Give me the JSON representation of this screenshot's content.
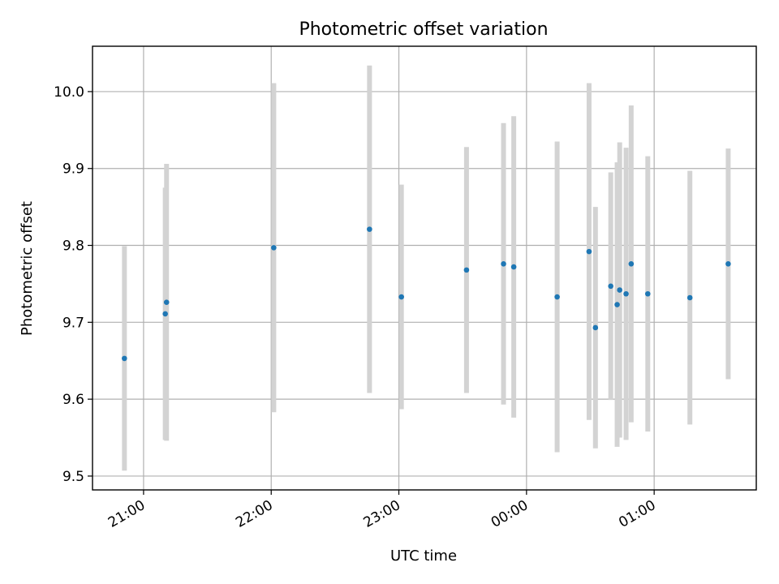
{
  "chart_data": {
    "type": "scatter",
    "title": "Photometric offset variation",
    "xlabel": "UTC time",
    "ylabel": "Photometric offset",
    "x_unit": "hours",
    "xlim": [
      20.6,
      25.8
    ],
    "ylim": [
      9.482,
      10.059
    ],
    "xticks": [
      {
        "value": 21,
        "label": "21:00"
      },
      {
        "value": 22,
        "label": "22:00"
      },
      {
        "value": 23,
        "label": "23:00"
      },
      {
        "value": 24,
        "label": "00:00"
      },
      {
        "value": 25,
        "label": "01:00"
      }
    ],
    "yticks": [
      {
        "value": 9.5,
        "label": "9.5"
      },
      {
        "value": 9.6,
        "label": "9.6"
      },
      {
        "value": 9.7,
        "label": "9.7"
      },
      {
        "value": 9.8,
        "label": "9.8"
      },
      {
        "value": 9.9,
        "label": "9.9"
      },
      {
        "value": 10.0,
        "label": "10.0"
      }
    ],
    "grid": true,
    "marker_color": "#1f77b4",
    "errorbar_color": "#d3d3d3",
    "points": [
      {
        "x": 20.85,
        "y": 9.653,
        "err": 0.146
      },
      {
        "x": 21.17,
        "y": 9.711,
        "err": 0.164
      },
      {
        "x": 21.18,
        "y": 9.726,
        "err": 0.18
      },
      {
        "x": 22.02,
        "y": 9.797,
        "err": 0.214
      },
      {
        "x": 22.77,
        "y": 9.821,
        "err": 0.213
      },
      {
        "x": 23.02,
        "y": 9.733,
        "err": 0.146
      },
      {
        "x": 23.53,
        "y": 9.768,
        "err": 0.16
      },
      {
        "x": 23.82,
        "y": 9.776,
        "err": 0.183
      },
      {
        "x": 23.9,
        "y": 9.772,
        "err": 0.196
      },
      {
        "x": 24.24,
        "y": 9.733,
        "err": 0.202
      },
      {
        "x": 24.49,
        "y": 9.792,
        "err": 0.219
      },
      {
        "x": 24.54,
        "y": 9.693,
        "err": 0.157
      },
      {
        "x": 24.66,
        "y": 9.747,
        "err": 0.148
      },
      {
        "x": 24.71,
        "y": 9.723,
        "err": 0.185
      },
      {
        "x": 24.73,
        "y": 9.742,
        "err": 0.192
      },
      {
        "x": 24.78,
        "y": 9.737,
        "err": 0.19
      },
      {
        "x": 24.82,
        "y": 9.776,
        "err": 0.206
      },
      {
        "x": 24.95,
        "y": 9.737,
        "err": 0.179
      },
      {
        "x": 25.28,
        "y": 9.732,
        "err": 0.165
      },
      {
        "x": 25.58,
        "y": 9.776,
        "err": 0.15
      }
    ]
  }
}
